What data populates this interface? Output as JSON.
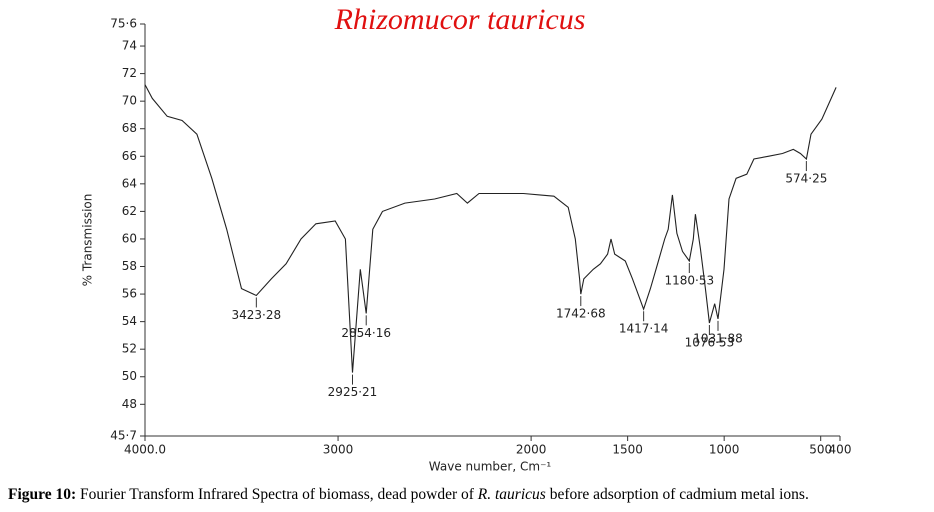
{
  "chart_data": {
    "type": "line",
    "title": "Rhizomucor tauricus",
    "x_label": "Wave number, Cm⁻¹",
    "y_label": "% Transmission",
    "xlim": [
      4000,
      400
    ],
    "ylim": [
      45.7,
      75.6
    ],
    "xticks": [
      {
        "value": 4000,
        "label": "4000.0"
      },
      3000,
      2000,
      1500,
      1000,
      500,
      400
    ],
    "yticks": [
      {
        "value": 45.7,
        "label": "45·7"
      },
      48,
      50,
      52,
      54,
      56,
      58,
      60,
      62,
      64,
      66,
      68,
      70,
      72,
      74,
      {
        "value": 75.6,
        "label": "75·6"
      }
    ],
    "color": "#222222",
    "x": [
      4000,
      3962,
      3885,
      3808,
      3731,
      3654,
      3577,
      3500,
      3423.28,
      3346,
      3269,
      3192,
      3115,
      3015,
      2962,
      2925.21,
      2885,
      2854.16,
      2820,
      2770,
      2654,
      2500,
      2385,
      2330,
      2270,
      2040,
      1956,
      1882,
      1808,
      1771,
      1749,
      1742.68,
      1727,
      1678,
      1641,
      1604,
      1586,
      1567,
      1512,
      1475,
      1438,
      1417.14,
      1382,
      1345,
      1308,
      1290,
      1268,
      1245,
      1216,
      1180.53,
      1160,
      1149,
      1123,
      1097,
      1076.53,
      1049,
      1031.88,
      1001,
      975,
      938,
      883,
      846,
      772,
      698,
      642,
      605,
      574.25,
      550,
      494,
      420
    ],
    "values": [
      71.2,
      70.2,
      68.9,
      68.6,
      67.6,
      64.4,
      60.7,
      56.4,
      55.9,
      57.1,
      58.2,
      60.0,
      61.1,
      61.3,
      60.0,
      50.3,
      57.8,
      54.6,
      60.7,
      62.0,
      62.6,
      62.9,
      63.3,
      62.6,
      63.3,
      63.3,
      63.2,
      63.1,
      62.3,
      60.0,
      57.1,
      56.0,
      57.1,
      57.8,
      58.2,
      58.9,
      60.0,
      58.9,
      58.4,
      57.1,
      55.7,
      54.9,
      56.4,
      58.2,
      60.0,
      60.7,
      63.2,
      60.4,
      59.1,
      58.4,
      60.0,
      61.8,
      59.3,
      56.4,
      53.9,
      55.3,
      54.2,
      57.8,
      62.9,
      64.4,
      64.7,
      65.8,
      66.0,
      66.2,
      66.5,
      66.2,
      65.8,
      67.6,
      68.7,
      71.0
    ],
    "annotations": [
      {
        "text": "3423·28",
        "x": 3423.28,
        "y": 55.9
      },
      {
        "text": "2925·21",
        "x": 2925.21,
        "y": 50.3
      },
      {
        "text": "2854·16",
        "x": 2854.16,
        "y": 54.6
      },
      {
        "text": "1742·68",
        "x": 1742.68,
        "y": 56.0
      },
      {
        "text": "1417·14",
        "x": 1417.14,
        "y": 54.9
      },
      {
        "text": "1180·53",
        "x": 1180.53,
        "y": 58.4
      },
      {
        "text": "1076·53",
        "x": 1076.53,
        "y": 53.9
      },
      {
        "text": "1031·88",
        "x": 1031.88,
        "y": 54.2
      },
      {
        "text": "574·25",
        "x": 574.25,
        "y": 65.8
      }
    ]
  },
  "caption": {
    "label": "Figure 10:",
    "parts": [
      "Fourier Transform Infrared Spectra of biomass, dead powder of ",
      "R. tauricus",
      " before adsorption of cadmium metal ions."
    ]
  }
}
